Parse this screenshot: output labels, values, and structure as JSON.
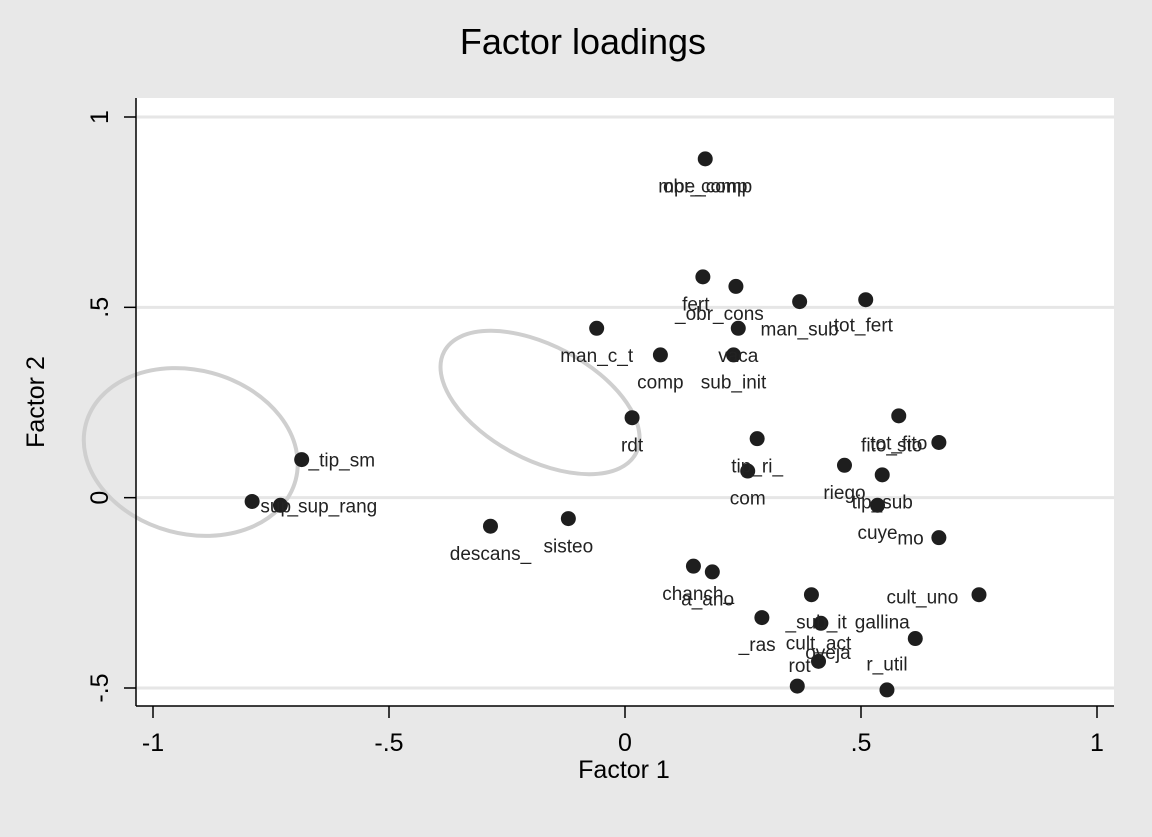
{
  "chart_data": {
    "type": "scatter",
    "title": "Factor loadings",
    "xlabel": "Factor 1",
    "ylabel": "Factor 2",
    "xlim": [
      -1,
      1
    ],
    "ylim": [
      -0.5,
      1
    ],
    "xticks": [
      -1,
      -0.5,
      0,
      0.5,
      1
    ],
    "xtick_labels": [
      "-1",
      "-.5",
      "0",
      ".5",
      "1"
    ],
    "yticks": [
      -0.5,
      0,
      0.5,
      1
    ],
    "ytick_labels": [
      "-.5",
      "0",
      ".5",
      "1"
    ],
    "grid": true,
    "points": [
      {
        "x": 0.17,
        "y": 0.89
      },
      {
        "x": 0.165,
        "y": 0.58
      },
      {
        "x": 0.235,
        "y": 0.555
      },
      {
        "x": 0.37,
        "y": 0.515
      },
      {
        "x": 0.51,
        "y": 0.52
      },
      {
        "x": -0.06,
        "y": 0.445
      },
      {
        "x": 0.24,
        "y": 0.445
      },
      {
        "x": 0.075,
        "y": 0.375
      },
      {
        "x": 0.23,
        "y": 0.375
      },
      {
        "x": 0.015,
        "y": 0.21
      },
      {
        "x": 0.58,
        "y": 0.215
      },
      {
        "x": 0.28,
        "y": 0.155
      },
      {
        "x": 0.665,
        "y": 0.145
      },
      {
        "x": -0.685,
        "y": 0.1
      },
      {
        "x": 0.26,
        "y": 0.07
      },
      {
        "x": 0.465,
        "y": 0.085
      },
      {
        "x": 0.545,
        "y": 0.06
      },
      {
        "x": -0.79,
        "y": -0.01
      },
      {
        "x": -0.73,
        "y": -0.02
      },
      {
        "x": 0.535,
        "y": -0.02
      },
      {
        "x": -0.12,
        "y": -0.055
      },
      {
        "x": -0.285,
        "y": -0.075
      },
      {
        "x": 0.665,
        "y": -0.105
      },
      {
        "x": 0.145,
        "y": -0.18
      },
      {
        "x": 0.185,
        "y": -0.195
      },
      {
        "x": 0.395,
        "y": -0.255
      },
      {
        "x": 0.75,
        "y": -0.255
      },
      {
        "x": 0.29,
        "y": -0.315
      },
      {
        "x": 0.415,
        "y": -0.33
      },
      {
        "x": 0.615,
        "y": -0.37
      },
      {
        "x": 0.41,
        "y": -0.43
      },
      {
        "x": 0.365,
        "y": -0.495
      },
      {
        "x": 0.555,
        "y": -0.505
      }
    ],
    "labels": [
      {
        "text": "mpe_comp",
        "x": 0.17,
        "y": 0.82
      },
      {
        "text": "obr_comp",
        "x": 0.17,
        "y": 0.82
      },
      {
        "text": "fert",
        "x": 0.15,
        "y": 0.51
      },
      {
        "text": "_obr_cons",
        "x": 0.2,
        "y": 0.485
      },
      {
        "text": "man_sub",
        "x": 0.37,
        "y": 0.445
      },
      {
        "text": "tot_fert",
        "x": 0.505,
        "y": 0.455
      },
      {
        "text": "man_c_t",
        "x": -0.06,
        "y": 0.375
      },
      {
        "text": "vaca",
        "x": 0.24,
        "y": 0.375
      },
      {
        "text": "comp",
        "x": 0.075,
        "y": 0.305
      },
      {
        "text": "sub_init",
        "x": 0.23,
        "y": 0.305
      },
      {
        "text": "rdt",
        "x": 0.015,
        "y": 0.14
      },
      {
        "text": "tot_fito",
        "x": 0.58,
        "y": 0.145
      },
      {
        "text": "fito_sto",
        "x": 0.565,
        "y": 0.14
      },
      {
        "text": "tip_ri_",
        "x": 0.28,
        "y": 0.085
      },
      {
        "text": "_tip_sm",
        "x": -0.6,
        "y": 0.1
      },
      {
        "text": "com",
        "x": 0.26,
        "y": 0.0
      },
      {
        "text": "riego",
        "x": 0.465,
        "y": 0.015
      },
      {
        "text": "tip_sub",
        "x": 0.545,
        "y": -0.01
      },
      {
        "text": "sup",
        "x": -0.74,
        "y": -0.02
      },
      {
        "text": "_sup_rang",
        "x": -0.62,
        "y": -0.02
      },
      {
        "text": "cuye",
        "x": 0.535,
        "y": -0.09
      },
      {
        "text": "mo",
        "x": 0.605,
        "y": -0.105
      },
      {
        "text": "descans_",
        "x": -0.285,
        "y": -0.145
      },
      {
        "text": "sisteo",
        "x": -0.12,
        "y": -0.125
      },
      {
        "text": "chanch_",
        "x": 0.155,
        "y": -0.25
      },
      {
        "text": "a_ano",
        "x": 0.175,
        "y": -0.265
      },
      {
        "text": "cult_uno",
        "x": 0.63,
        "y": -0.26
      },
      {
        "text": "_sub_it",
        "x": 0.405,
        "y": -0.325
      },
      {
        "text": "gallina",
        "x": 0.545,
        "y": -0.325
      },
      {
        "text": "_ras",
        "x": 0.28,
        "y": -0.385
      },
      {
        "text": "cult_act",
        "x": 0.41,
        "y": -0.38
      },
      {
        "text": "oveja",
        "x": 0.43,
        "y": -0.405
      },
      {
        "text": "rot",
        "x": 0.37,
        "y": -0.44
      },
      {
        "text": "r_util",
        "x": 0.555,
        "y": -0.435
      }
    ],
    "ellipses": [
      {
        "cx": -0.92,
        "cy": 0.12,
        "rx": 0.23,
        "ry": 0.215,
        "rotate": 15
      },
      {
        "cx": -0.18,
        "cy": 0.25,
        "rx": 0.23,
        "ry": 0.15,
        "rotate": 28
      }
    ]
  }
}
